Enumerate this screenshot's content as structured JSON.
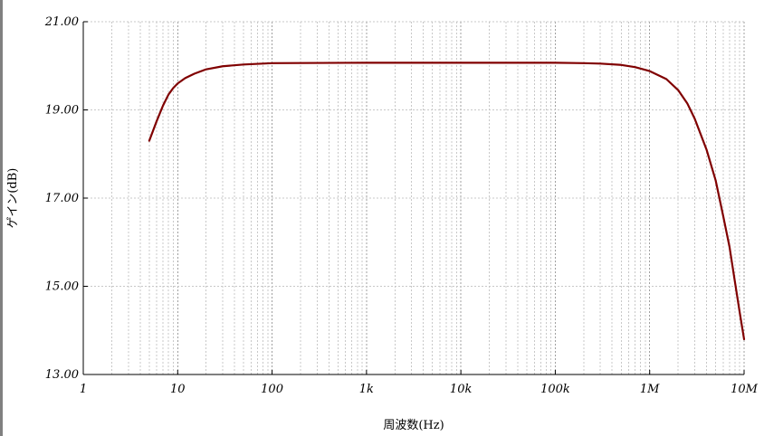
{
  "chart_data": {
    "type": "line",
    "xlabel": "周波数(Hz)",
    "ylabel": "ゲイン(dB)",
    "x_scale": "log",
    "xlim": [
      1,
      10000000
    ],
    "ylim": [
      13,
      21
    ],
    "grid": true,
    "x_ticks": [
      {
        "value": 1,
        "label": "1"
      },
      {
        "value": 10,
        "label": "10"
      },
      {
        "value": 100,
        "label": "100"
      },
      {
        "value": 1000,
        "label": "1k"
      },
      {
        "value": 10000,
        "label": "10k"
      },
      {
        "value": 100000,
        "label": "100k"
      },
      {
        "value": 1000000,
        "label": "1M"
      },
      {
        "value": 10000000,
        "label": "10M"
      }
    ],
    "y_ticks": [
      {
        "value": 13,
        "label": "13.00"
      },
      {
        "value": 15,
        "label": "15.00"
      },
      {
        "value": 17,
        "label": "17.00"
      },
      {
        "value": 19,
        "label": "19.00"
      },
      {
        "value": 21,
        "label": "21.00"
      }
    ],
    "series": [
      {
        "color": "#800000",
        "points": [
          [
            5,
            18.3
          ],
          [
            6,
            18.75
          ],
          [
            7,
            19.1
          ],
          [
            8,
            19.35
          ],
          [
            9,
            19.5
          ],
          [
            10,
            19.6
          ],
          [
            12,
            19.72
          ],
          [
            15,
            19.82
          ],
          [
            20,
            19.92
          ],
          [
            30,
            19.99
          ],
          [
            50,
            20.03
          ],
          [
            100,
            20.06
          ],
          [
            1000,
            20.07
          ],
          [
            10000,
            20.07
          ],
          [
            100000,
            20.07
          ],
          [
            200000,
            20.06
          ],
          [
            300000,
            20.05
          ],
          [
            500000,
            20.02
          ],
          [
            700000,
            19.97
          ],
          [
            1000000,
            19.88
          ],
          [
            1500000,
            19.7
          ],
          [
            2000000,
            19.45
          ],
          [
            2500000,
            19.15
          ],
          [
            3000000,
            18.8
          ],
          [
            4000000,
            18.1
          ],
          [
            5000000,
            17.4
          ],
          [
            6000000,
            16.6
          ],
          [
            7000000,
            15.9
          ],
          [
            8000000,
            15.1
          ],
          [
            9000000,
            14.4
          ],
          [
            10000000,
            13.8
          ]
        ]
      }
    ]
  }
}
